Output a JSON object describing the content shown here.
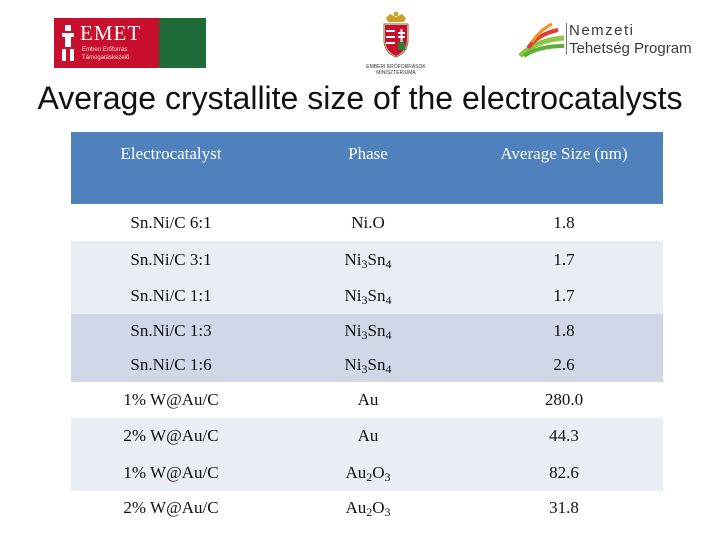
{
  "logos": {
    "emet": {
      "word": "EMET",
      "subtitle": "Emberi Erőforrás Támogatáskezelő"
    },
    "crest": {
      "caption": "EMBERI ERŐFORRÁSOK MINISZTÉRIUMA"
    },
    "ntp": {
      "line1": "Nemzeti",
      "line2": "Tehetség Program"
    }
  },
  "title": "Average crystallite size of the electrocatalysts",
  "table": {
    "headers": [
      "Electrocatalyst",
      "Phase",
      "Average Size (nm)"
    ],
    "rows": [
      {
        "catalyst": "Sn.Ni/C 6:1",
        "phase": "Ni.O",
        "phase_sub": [],
        "size": "1.8"
      },
      {
        "catalyst": "Sn.Ni/C 3:1",
        "phase": "Ni3Sn4",
        "phase_parts": [
          "Ni",
          "3",
          "Sn",
          "4"
        ],
        "size": "1.7"
      },
      {
        "catalyst": "Sn.Ni/C 1:1",
        "phase": "Ni3Sn4",
        "phase_parts": [
          "Ni",
          "3",
          "Sn",
          "4"
        ],
        "size": "1.7"
      },
      {
        "catalyst": "Sn.Ni/C 1:3",
        "phase": "Ni3Sn4",
        "phase_parts": [
          "Ni",
          "3",
          "Sn",
          "4"
        ],
        "size": "1.8"
      },
      {
        "catalyst": "Sn.Ni/C 1:6",
        "phase": "Ni3Sn4",
        "phase_parts": [
          "Ni",
          "3",
          "Sn",
          "4"
        ],
        "size": "2.6"
      },
      {
        "catalyst": "1% W@Au/C",
        "phase": "Au",
        "size": "280.0"
      },
      {
        "catalyst": "2% W@Au/C",
        "phase": "Au",
        "size": "44.3"
      },
      {
        "catalyst": "1% W@Au/C",
        "phase": "Au2O3",
        "phase_parts": [
          "Au",
          "2",
          "O",
          "3"
        ],
        "size": "82.6"
      },
      {
        "catalyst": "2% W@Au/C",
        "phase": "Au2O3",
        "phase_parts": [
          "Au",
          "2",
          "O",
          "3"
        ],
        "size": "31.8"
      }
    ]
  },
  "colors": {
    "header_bg": "#4f81bd",
    "row_light": "#e9edf4",
    "row_dark": "#d0d8e8",
    "emet_red": "#c8102e",
    "emet_green": "#1f6b3a"
  }
}
